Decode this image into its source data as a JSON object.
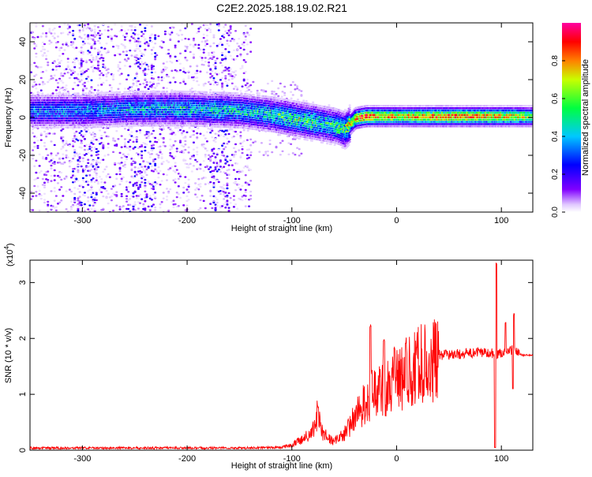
{
  "title": "C2E2.2025.188.19.02.R21",
  "chart_data": [
    {
      "type": "heatmap",
      "xlabel": "Height of straight line (km)",
      "ylabel": "Frequency (Hz)",
      "xlim": [
        -350,
        130
      ],
      "ylim": [
        -50,
        50
      ],
      "xticks": [
        -300,
        -200,
        -100,
        0,
        100
      ],
      "yticks": [
        -40,
        -20,
        0,
        20,
        40
      ],
      "colorbar": {
        "label": "Normalized spectral amplitude",
        "range": [
          0,
          1
        ],
        "ticks": [
          0.0,
          0.2,
          0.4,
          0.6,
          0.8
        ],
        "tick_labels": [
          "0.0",
          "0.2",
          "0.4",
          "0.6",
          "0.8"
        ],
        "colormap": [
          "#ffffff",
          "#8000ff",
          "#0000ff",
          "#00ffff",
          "#00ff00",
          "#ffff00",
          "#ff8000",
          "#ff0000",
          "#ff00aa"
        ]
      },
      "ridge": {
        "description_points_x": [
          -350,
          -300,
          -250,
          -200,
          -150,
          -120,
          -100,
          -80,
          -60,
          -50,
          -40,
          -30,
          0,
          50,
          90,
          100,
          115,
          130
        ],
        "frequency_hz": [
          4,
          4,
          5,
          5,
          4,
          2,
          0,
          -2,
          -4,
          -6,
          0,
          1,
          1,
          1,
          1,
          1,
          1,
          1
        ],
        "peak_amplitude": [
          0.35,
          0.35,
          0.4,
          0.45,
          0.45,
          0.5,
          0.55,
          0.55,
          0.5,
          0.6,
          0.8,
          0.9,
          0.75,
          0.85,
          0.8,
          0.75,
          0.75,
          0.6
        ]
      }
    },
    {
      "type": "line",
      "xlabel": "Height of straight line (km)",
      "ylabel": "SNR (10 * v/v)",
      "multiplier": "(x10",
      "multiplier_exp": "4",
      "xlim": [
        -350,
        130
      ],
      "ylim": [
        0,
        3.4
      ],
      "xticks": [
        -300,
        -200,
        -100,
        0,
        100
      ],
      "yticks": [
        0,
        1,
        2,
        3
      ],
      "color": "#ff0000",
      "envelope": {
        "x": [
          -350,
          -150,
          -110,
          -100,
          -90,
          -80,
          -75,
          -70,
          -60,
          -50,
          -40,
          -30,
          -20,
          -10,
          0,
          10,
          20,
          30,
          40,
          60,
          80,
          90,
          95,
          100,
          105,
          110,
          115,
          120,
          130
        ],
        "y": [
          0.04,
          0.04,
          0.05,
          0.1,
          0.2,
          0.35,
          0.75,
          0.3,
          0.15,
          0.3,
          0.6,
          0.9,
          1.1,
          1.2,
          1.3,
          1.45,
          1.6,
          1.65,
          1.7,
          1.72,
          1.75,
          1.75,
          1.7,
          1.75,
          1.75,
          1.8,
          1.75,
          1.7,
          1.7
        ]
      },
      "spikes": [
        {
          "x": -75,
          "y": 0.8
        },
        {
          "x": -25,
          "y": 2.25
        },
        {
          "x": -12,
          "y": 2.0
        },
        {
          "x": -2,
          "y": 1.85
        },
        {
          "x": 95,
          "y": 3.35
        },
        {
          "x": 104,
          "y": 2.3
        },
        {
          "x": 112,
          "y": 2.45
        }
      ],
      "dips": [
        {
          "x": 94,
          "y": 0.05
        },
        {
          "x": 111,
          "y": 1.1
        }
      ]
    }
  ]
}
